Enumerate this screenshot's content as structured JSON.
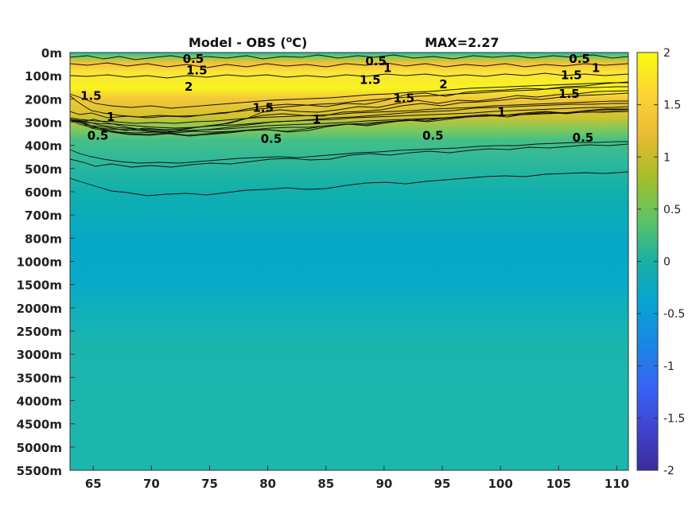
{
  "chart_data": {
    "type": "heatmap",
    "title_left": "Model - OBS (",
    "title_unit_sup": "o",
    "title_unit_end": "C)",
    "title_right": "MAX=2.27",
    "x": [
      65,
      70,
      75,
      80,
      85,
      90,
      95,
      100,
      105,
      110
    ],
    "xlim": [
      63,
      111
    ],
    "y_tick_labels": [
      "0m",
      "100m",
      "200m",
      "300m",
      "400m",
      "500m",
      "600m",
      "700m",
      "800m",
      "1000m",
      "1500m",
      "2000m",
      "2500m",
      "3000m",
      "3500m",
      "4000m",
      "4500m",
      "5000m",
      "5500m"
    ],
    "colorbar": {
      "min": -2,
      "max": 2,
      "tick_labels": [
        "2",
        "1.5",
        "1",
        "0.5",
        "0",
        "-0.5",
        "-1",
        "-1.5",
        "-2"
      ]
    },
    "contour_levels": [
      0.5,
      1,
      1.5,
      2
    ],
    "contour_labels": [
      {
        "text": "0.5",
        "x": 73.6,
        "level": "0m"
      },
      {
        "text": "1.5",
        "x": 73.9,
        "level": "50m"
      },
      {
        "text": "2",
        "x": 73.2,
        "level": "120m"
      },
      {
        "text": "1.5",
        "x": 64.8,
        "level": "160m"
      },
      {
        "text": "1",
        "x": 66.5,
        "level": "250m"
      },
      {
        "text": "0.5",
        "x": 65.4,
        "level": "330m"
      },
      {
        "text": "1.5",
        "x": 79.6,
        "level": "210m"
      },
      {
        "text": "1",
        "x": 84.2,
        "level": "260m"
      },
      {
        "text": "0.5",
        "x": 80.3,
        "level": "345m"
      },
      {
        "text": "0.5",
        "x": 89.3,
        "level": "10m"
      },
      {
        "text": "1",
        "x": 90.3,
        "level": "40m"
      },
      {
        "text": "1.5",
        "x": 88.8,
        "level": "90m"
      },
      {
        "text": "2",
        "x": 95.1,
        "level": "110m"
      },
      {
        "text": "1.5",
        "x": 91.7,
        "level": "170m"
      },
      {
        "text": "0.5",
        "x": 94.2,
        "level": "330m"
      },
      {
        "text": "1",
        "x": 100.1,
        "level": "230m"
      },
      {
        "text": "0.5",
        "x": 106.8,
        "level": "0m"
      },
      {
        "text": "1",
        "x": 108.2,
        "level": "40m"
      },
      {
        "text": "1.5",
        "x": 106.1,
        "level": "70m"
      },
      {
        "text": "1.5",
        "x": 105.9,
        "level": "150m"
      },
      {
        "text": "0.5",
        "x": 107.1,
        "level": "340m"
      }
    ]
  }
}
